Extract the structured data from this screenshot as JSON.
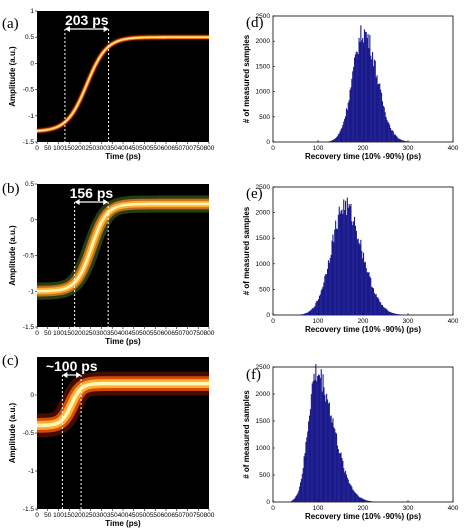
{
  "chart_data": [
    {
      "panel": "(a)",
      "type": "line",
      "xlabel": "Time (ps)",
      "ylabel": "Amplitude (a.u.)",
      "xlim": [
        0,
        800
      ],
      "ylim": [
        -1.5,
        1
      ],
      "xticks": [
        0,
        50,
        100,
        150,
        200,
        250,
        300,
        350,
        400,
        450,
        500,
        550,
        600,
        650,
        700,
        750,
        800
      ],
      "yticks": [
        -1.5,
        -1,
        -0.5,
        0,
        0.5,
        1
      ],
      "trace": {
        "low": -1.3,
        "high": 0.5,
        "t10": 130,
        "t90": 333,
        "spread": 0.05
      },
      "markers": [
        130,
        333
      ],
      "annotation": "203 ps"
    },
    {
      "panel": "(b)",
      "type": "line",
      "xlabel": "Time (ps)",
      "ylabel": "Amplitude (a.u.)",
      "xlim": [
        0,
        800
      ],
      "ylim": [
        -1.5,
        0.5
      ],
      "xticks": [
        0,
        50,
        100,
        150,
        200,
        250,
        300,
        350,
        400,
        450,
        500,
        550,
        600,
        650,
        700,
        750,
        800
      ],
      "yticks": [
        -1.5,
        -1,
        -0.5,
        0,
        0.5
      ],
      "trace": {
        "low": -1.0,
        "high": 0.22,
        "t10": 175,
        "t90": 331,
        "spread": 0.1
      },
      "markers": [
        175,
        331
      ],
      "annotation": "156 ps"
    },
    {
      "panel": "(c)",
      "type": "line",
      "xlabel": "Time (ps)",
      "ylabel": "Amplitude (a.u.)",
      "xlim": [
        0,
        800
      ],
      "ylim": [
        -1.5,
        0.5
      ],
      "xticks": [
        0,
        50,
        100,
        150,
        200,
        250,
        300,
        350,
        400,
        450,
        500,
        550,
        600,
        650,
        700,
        750,
        800
      ],
      "yticks": [
        -1.5,
        -1,
        -0.5,
        0
      ],
      "trace": {
        "low": -0.4,
        "high": 0.15,
        "t10": 110,
        "t90": 210,
        "spread": 0.13
      },
      "markers": [
        118,
        205
      ],
      "annotation": "~100 ps"
    },
    {
      "panel": "(d)",
      "type": "bar",
      "xlabel": "Recovery time (10% -90%) (ps)",
      "ylabel": "# of measured samples",
      "xlim": [
        0,
        400
      ],
      "ylim": [
        0,
        2500
      ],
      "xticks": [
        0,
        100,
        200,
        300,
        400
      ],
      "yticks": [
        0,
        500,
        1000,
        1500,
        2000,
        2500
      ],
      "distribution": {
        "mean": 200,
        "sd_left": 24,
        "sd_right": 30,
        "peak": 2180,
        "min": 120,
        "max": 300
      },
      "bar_color": "#1a1a8c"
    },
    {
      "panel": "(e)",
      "type": "bar",
      "xlabel": "Recovery time (10% -90%) (ps)",
      "ylabel": "# of measured samples",
      "xlim": [
        0,
        400
      ],
      "ylim": [
        0,
        2500
      ],
      "xticks": [
        0,
        100,
        200,
        300,
        400
      ],
      "yticks": [
        0,
        500,
        1000,
        1500,
        2000,
        2500
      ],
      "distribution": {
        "mean": 158,
        "sd_left": 30,
        "sd_right": 38,
        "peak": 2130,
        "min": 60,
        "max": 320
      },
      "bar_color": "#1a1a8c"
    },
    {
      "panel": "(f)",
      "type": "bar",
      "xlabel": "Recovery time (10% -90%) (ps)",
      "ylabel": "# of measured samples",
      "xlim": [
        0,
        400
      ],
      "ylim": [
        0,
        2500
      ],
      "xticks": [
        0,
        100,
        200,
        300,
        400
      ],
      "yticks": [
        0,
        500,
        1000,
        1500,
        2000,
        2500
      ],
      "distribution": {
        "mean": 95,
        "sd_left": 18,
        "sd_right": 38,
        "peak": 2380,
        "min": 40,
        "max": 300
      },
      "bar_color": "#1a1a8c"
    }
  ]
}
